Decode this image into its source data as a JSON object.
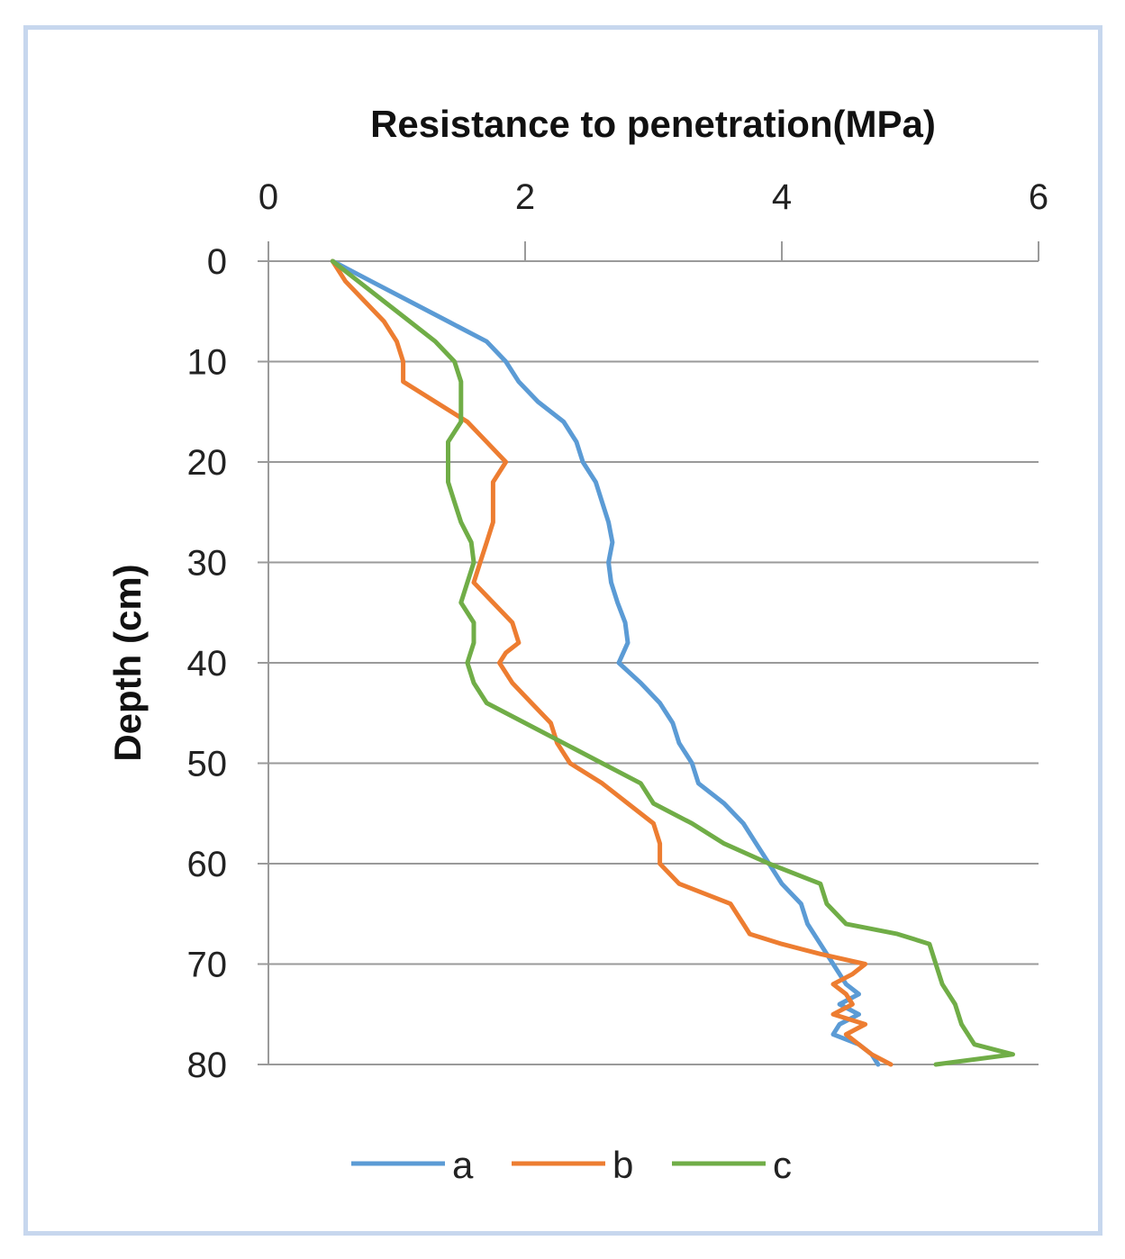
{
  "chart_data": {
    "type": "line",
    "title": "",
    "xlabel": "Resistance to penetration(MPa)",
    "ylabel": "Depth (cm)",
    "xlim": [
      0,
      6
    ],
    "ylim": [
      0,
      80
    ],
    "x_axis_position": "top",
    "y_axis_inverted": true,
    "x_ticks": [
      0,
      2,
      4,
      6
    ],
    "y_ticks": [
      0,
      10,
      20,
      30,
      40,
      50,
      60,
      70,
      80
    ],
    "grid": "horizontal",
    "legend_position": "bottom",
    "series": [
      {
        "name": "a",
        "color": "#5b9bd5",
        "points": [
          [
            0.5,
            0
          ],
          [
            0.8,
            2
          ],
          [
            1.1,
            4
          ],
          [
            1.4,
            6
          ],
          [
            1.7,
            8
          ],
          [
            1.85,
            10
          ],
          [
            1.95,
            12
          ],
          [
            2.1,
            14
          ],
          [
            2.3,
            16
          ],
          [
            2.4,
            18
          ],
          [
            2.45,
            20
          ],
          [
            2.55,
            22
          ],
          [
            2.6,
            24
          ],
          [
            2.65,
            26
          ],
          [
            2.68,
            28
          ],
          [
            2.65,
            30
          ],
          [
            2.67,
            32
          ],
          [
            2.72,
            34
          ],
          [
            2.78,
            36
          ],
          [
            2.8,
            38
          ],
          [
            2.73,
            40
          ],
          [
            2.9,
            42
          ],
          [
            3.05,
            44
          ],
          [
            3.15,
            46
          ],
          [
            3.2,
            48
          ],
          [
            3.3,
            50
          ],
          [
            3.35,
            52
          ],
          [
            3.55,
            54
          ],
          [
            3.7,
            56
          ],
          [
            3.8,
            58
          ],
          [
            3.9,
            60
          ],
          [
            4.0,
            62
          ],
          [
            4.15,
            64
          ],
          [
            4.2,
            66
          ],
          [
            4.3,
            68
          ],
          [
            4.4,
            70
          ],
          [
            4.5,
            72
          ],
          [
            4.6,
            73
          ],
          [
            4.45,
            74
          ],
          [
            4.6,
            75
          ],
          [
            4.45,
            76
          ],
          [
            4.4,
            77
          ],
          [
            4.6,
            78
          ],
          [
            4.7,
            79
          ],
          [
            4.75,
            80
          ]
        ]
      },
      {
        "name": "b",
        "color": "#ed7d31",
        "points": [
          [
            0.5,
            0
          ],
          [
            0.6,
            2
          ],
          [
            0.75,
            4
          ],
          [
            0.9,
            6
          ],
          [
            1.0,
            8
          ],
          [
            1.05,
            10
          ],
          [
            1.05,
            12
          ],
          [
            1.3,
            14
          ],
          [
            1.55,
            16
          ],
          [
            1.7,
            18
          ],
          [
            1.85,
            20
          ],
          [
            1.75,
            22
          ],
          [
            1.75,
            24
          ],
          [
            1.75,
            26
          ],
          [
            1.7,
            28
          ],
          [
            1.65,
            30
          ],
          [
            1.6,
            32
          ],
          [
            1.75,
            34
          ],
          [
            1.9,
            36
          ],
          [
            1.95,
            38
          ],
          [
            1.85,
            39
          ],
          [
            1.8,
            40
          ],
          [
            1.9,
            42
          ],
          [
            2.05,
            44
          ],
          [
            2.2,
            46
          ],
          [
            2.25,
            48
          ],
          [
            2.35,
            50
          ],
          [
            2.6,
            52
          ],
          [
            2.8,
            54
          ],
          [
            3.0,
            56
          ],
          [
            3.05,
            58
          ],
          [
            3.05,
            60
          ],
          [
            3.2,
            62
          ],
          [
            3.6,
            64
          ],
          [
            3.7,
            66
          ],
          [
            3.75,
            67
          ],
          [
            4.0,
            68
          ],
          [
            4.3,
            69
          ],
          [
            4.65,
            70
          ],
          [
            4.55,
            71
          ],
          [
            4.4,
            72
          ],
          [
            4.5,
            73
          ],
          [
            4.55,
            74
          ],
          [
            4.4,
            75
          ],
          [
            4.65,
            76
          ],
          [
            4.5,
            77
          ],
          [
            4.6,
            78
          ],
          [
            4.7,
            79
          ],
          [
            4.85,
            80
          ]
        ]
      },
      {
        "name": "c",
        "color": "#70ad47",
        "points": [
          [
            0.5,
            0
          ],
          [
            0.7,
            2
          ],
          [
            0.9,
            4
          ],
          [
            1.1,
            6
          ],
          [
            1.3,
            8
          ],
          [
            1.45,
            10
          ],
          [
            1.5,
            12
          ],
          [
            1.5,
            14
          ],
          [
            1.5,
            16
          ],
          [
            1.4,
            18
          ],
          [
            1.4,
            20
          ],
          [
            1.4,
            22
          ],
          [
            1.45,
            24
          ],
          [
            1.5,
            26
          ],
          [
            1.58,
            28
          ],
          [
            1.6,
            30
          ],
          [
            1.55,
            32
          ],
          [
            1.5,
            34
          ],
          [
            1.6,
            36
          ],
          [
            1.6,
            38
          ],
          [
            1.55,
            40
          ],
          [
            1.6,
            42
          ],
          [
            1.7,
            44
          ],
          [
            2.0,
            46
          ],
          [
            2.3,
            48
          ],
          [
            2.6,
            50
          ],
          [
            2.9,
            52
          ],
          [
            3.0,
            54
          ],
          [
            3.3,
            56
          ],
          [
            3.55,
            58
          ],
          [
            3.9,
            60
          ],
          [
            4.3,
            62
          ],
          [
            4.35,
            64
          ],
          [
            4.5,
            66
          ],
          [
            4.9,
            67
          ],
          [
            5.15,
            68
          ],
          [
            5.2,
            70
          ],
          [
            5.25,
            72
          ],
          [
            5.35,
            74
          ],
          [
            5.4,
            76
          ],
          [
            5.5,
            78
          ],
          [
            5.8,
            79
          ],
          [
            5.2,
            80
          ]
        ]
      }
    ]
  }
}
